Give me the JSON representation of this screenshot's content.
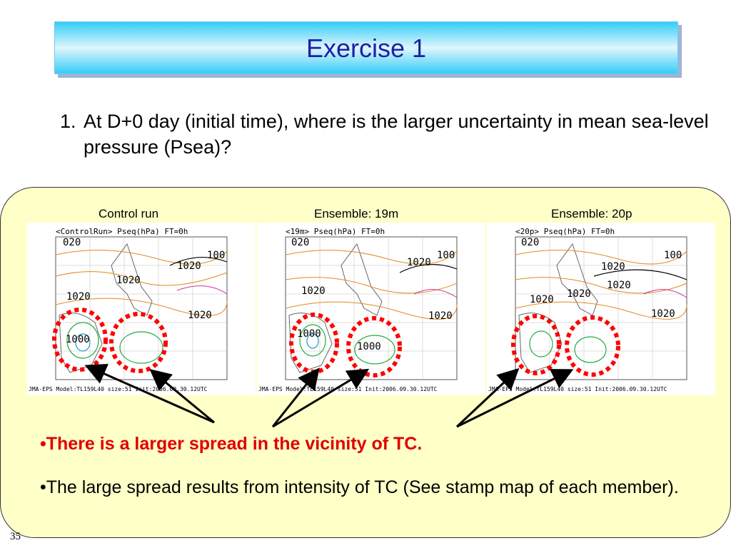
{
  "title": "Exercise 1",
  "question": {
    "number": "1.",
    "text": "At D+0 day (initial time), where is the larger uncertainty in mean sea-level pressure (Psea)?"
  },
  "maps": [
    {
      "caption": "Control run",
      "header": "<ControlRun>   Pseq(hPa)  FT=0h",
      "footer": "JMA-EPS Model:TL159L40 size:51 Init:2006.09.30.12UTC",
      "contour_labels": [
        "020",
        "1020",
        "1020",
        "1020",
        "1020",
        "1000",
        "100"
      ]
    },
    {
      "caption": "Ensemble: 19m",
      "header": "<19m>   Pseq(hPa)  FT=0h",
      "footer": "JMA-EPS Model:TL159L40 size:51 Init:2006.09.30.12UTC",
      "contour_labels": [
        "020",
        "1020",
        "1020",
        "1020",
        "1000",
        "1000",
        "100"
      ]
    },
    {
      "caption": "Ensemble: 20p",
      "header": "<20p>   Pseq(hPa)  FT=0h",
      "footer": "JMA-EPS Model:TL159L40 size:51 Init:2006.09.30.12UTC",
      "contour_labels": [
        "020",
        "1020",
        "1020",
        "1020",
        "1020",
        "1020",
        "100"
      ]
    }
  ],
  "bullets": [
    "•There is a larger spread in the vicinity of TC.",
    "•The large spread results from intensity of TC (See stamp map of each member)."
  ],
  "page_number": "35",
  "colors": {
    "title_text": "#1f1fa8",
    "highlight_bullet": "#e00000",
    "panel_fill": "#ffffc8",
    "circle_marker": "#ff0000"
  }
}
